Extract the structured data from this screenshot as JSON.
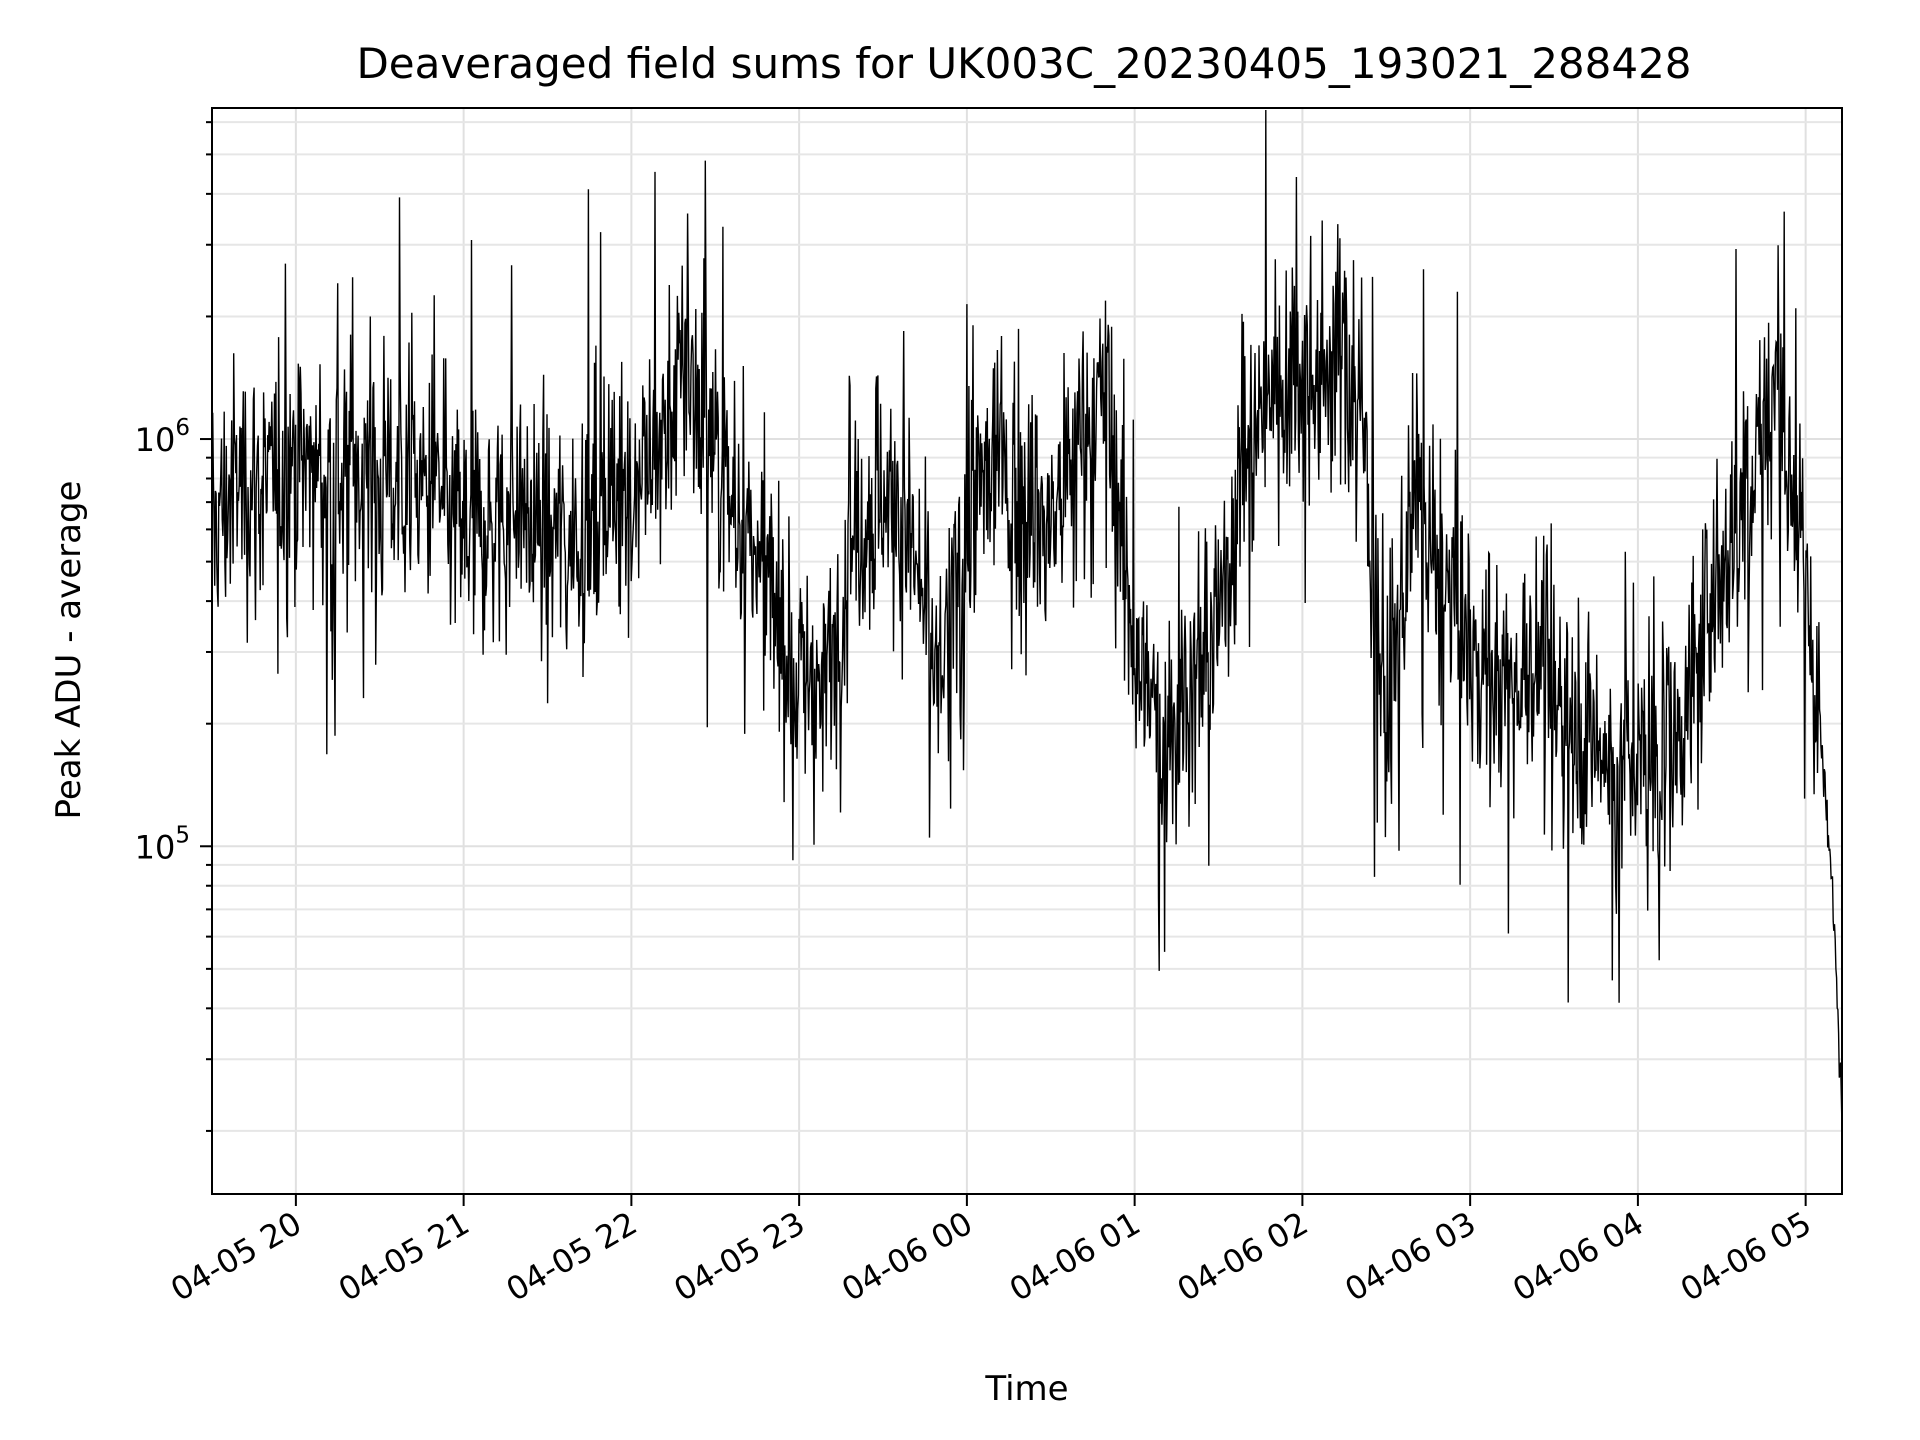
{
  "chart_data": {
    "type": "line",
    "title": "Deaveraged field sums for UK003C_20230405_193021_288428",
    "xlabel": "Time",
    "ylabel": "Peak ADU - average",
    "yscale": "log",
    "ylim": [
      14000,
      6500000
    ],
    "xlim": [
      "2023-04-05 19:30",
      "2023-04-06 05:13"
    ],
    "grid": true,
    "x_ticks": [
      {
        "t": "2023-04-05 20:00",
        "label": "04-05 20"
      },
      {
        "t": "2023-04-05 21:00",
        "label": "04-05 21"
      },
      {
        "t": "2023-04-05 22:00",
        "label": "04-05 22"
      },
      {
        "t": "2023-04-05 23:00",
        "label": "04-05 23"
      },
      {
        "t": "2023-04-06 00:00",
        "label": "04-06 00"
      },
      {
        "t": "2023-04-06 01:00",
        "label": "04-06 01"
      },
      {
        "t": "2023-04-06 02:00",
        "label": "04-06 02"
      },
      {
        "t": "2023-04-06 03:00",
        "label": "04-06 03"
      },
      {
        "t": "2023-04-06 04:00",
        "label": "04-06 04"
      },
      {
        "t": "2023-04-06 05:00",
        "label": "04-06 05"
      }
    ],
    "y_ticks": [
      {
        "value": 100000,
        "base": "10",
        "exp": "5"
      },
      {
        "value": 1000000,
        "base": "10",
        "exp": "6"
      }
    ],
    "series": [
      {
        "color": "#000000",
        "x": [
          "2023-04-05 19:30",
          "2023-04-05 19:40",
          "2023-04-05 19:50",
          "2023-04-05 20:00",
          "2023-04-05 20:10",
          "2023-04-05 20:20",
          "2023-04-05 20:30",
          "2023-04-05 20:40",
          "2023-04-05 20:50",
          "2023-04-05 21:00",
          "2023-04-05 21:10",
          "2023-04-05 21:20",
          "2023-04-05 21:30",
          "2023-04-05 21:40",
          "2023-04-05 21:50",
          "2023-04-05 22:00",
          "2023-04-05 22:10",
          "2023-04-05 22:20",
          "2023-04-05 22:30",
          "2023-04-05 22:40",
          "2023-04-05 22:50",
          "2023-04-05 23:00",
          "2023-04-05 23:10",
          "2023-04-05 23:20",
          "2023-04-05 23:30",
          "2023-04-05 23:40",
          "2023-04-05 23:50",
          "2023-04-06 00:00",
          "2023-04-06 00:10",
          "2023-04-06 00:20",
          "2023-04-06 00:30",
          "2023-04-06 00:40",
          "2023-04-06 00:50",
          "2023-04-06 01:00",
          "2023-04-06 01:10",
          "2023-04-06 01:20",
          "2023-04-06 01:30",
          "2023-04-06 01:40",
          "2023-04-06 01:50",
          "2023-04-06 02:00",
          "2023-04-06 02:10",
          "2023-04-06 02:20",
          "2023-04-06 02:30",
          "2023-04-06 02:40",
          "2023-04-06 02:50",
          "2023-04-06 03:00",
          "2023-04-06 03:10",
          "2023-04-06 03:20",
          "2023-04-06 03:30",
          "2023-04-06 03:40",
          "2023-04-06 03:50",
          "2023-04-06 04:00",
          "2023-04-06 04:10",
          "2023-04-06 04:20",
          "2023-04-06 04:30",
          "2023-04-06 04:40",
          "2023-04-06 04:50",
          "2023-04-06 05:00",
          "2023-04-06 05:05",
          "2023-04-06 05:10",
          "2023-04-06 05:13"
        ],
        "y": [
          600000,
          800000,
          750000,
          900000,
          800000,
          850000,
          780000,
          820000,
          700000,
          600000,
          620000,
          680000,
          560000,
          600000,
          650000,
          800000,
          950000,
          1500000,
          900000,
          600000,
          400000,
          260000,
          250000,
          600000,
          750000,
          550000,
          250000,
          600000,
          900000,
          700000,
          600000,
          1000000,
          1300000,
          300000,
          180000,
          250000,
          350000,
          1000000,
          1400000,
          1500000,
          1600000,
          1400000,
          200000,
          700000,
          400000,
          320000,
          250000,
          280000,
          260000,
          200000,
          160000,
          150000,
          160000,
          250000,
          500000,
          800000,
          1500000,
          400000,
          200000,
          70000,
          22000
        ]
      }
    ]
  }
}
